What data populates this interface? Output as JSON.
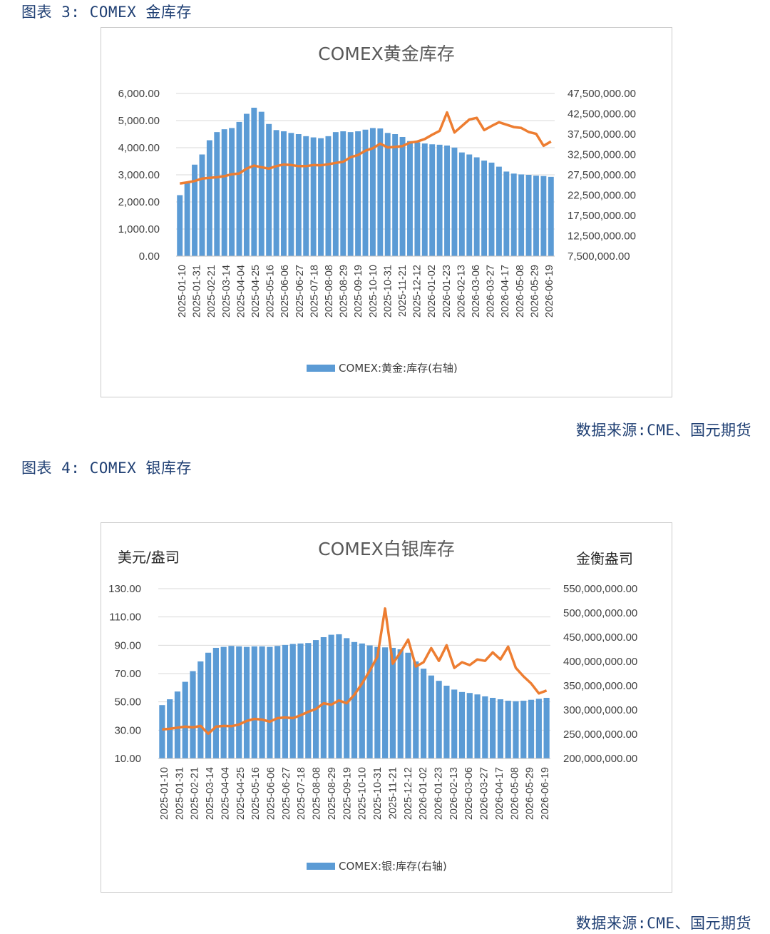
{
  "captions": {
    "fig3": "图表 3: COMEX 金库存",
    "fig4": "图表 4: COMEX 银库存",
    "source3": "数据来源:CME、国元期货",
    "source4": "数据来源:CME、国元期货"
  },
  "colors": {
    "bar": "#5b9bd5",
    "line": "#ed7d31",
    "grid": "#d9d9d9"
  },
  "chart_data": [
    {
      "type": "bar+line",
      "title": "COMEX黄金库存",
      "left_unit": "",
      "right_unit": "",
      "left_axis": {
        "min": 0,
        "max": 6000,
        "ticks": [
          "6,000.00",
          "5,000.00",
          "4,000.00",
          "3,000.00",
          "2,000.00",
          "1,000.00",
          "0.00"
        ]
      },
      "right_axis": {
        "min": 7500000,
        "max": 47500000,
        "ticks": [
          "47,500,000.00",
          "42,500,000.00",
          "37,500,000.00",
          "32,500,000.00",
          "27,500,000.00",
          "22,500,000.00",
          "17,500,000.00",
          "12,500,000.00",
          "7,500,000.00"
        ]
      },
      "x_tick_labels": [
        "2025-01-10",
        "2025-01-31",
        "2025-02-21",
        "2025-03-14",
        "2025-04-04",
        "2025-04-25",
        "2025-05-16",
        "2025-06-06",
        "2025-06-27",
        "2025-07-18",
        "2025-08-08",
        "2025-08-29",
        "2025-09-19",
        "2025-10-10",
        "2025-10-31",
        "2025-11-21",
        "2025-12-12",
        "2026-01-02",
        "2026-01-23",
        "2026-02-13",
        "2026-03-06",
        "2026-03-27",
        "2026-04-17",
        "2026-05-08",
        "2026-05-29",
        "2026-06-19"
      ],
      "series": [
        {
          "name": "COMEX:黄金:库存(右轴)",
          "kind": "bar",
          "axis": "right",
          "values": [
            22500000,
            25500000,
            30000000,
            32500000,
            36000000,
            38000000,
            38700000,
            39000000,
            40500000,
            42500000,
            44000000,
            43000000,
            40000000,
            38500000,
            38200000,
            37800000,
            37500000,
            37000000,
            36700000,
            36500000,
            37000000,
            38000000,
            38200000,
            38000000,
            38200000,
            38600000,
            39000000,
            38900000,
            37800000,
            37500000,
            36800000,
            35800000,
            35500000,
            35200000,
            35000000,
            34900000,
            34700000,
            34200000,
            33000000,
            32500000,
            31800000,
            31000000,
            30500000,
            29500000,
            28300000,
            27800000,
            27600000,
            27500000,
            27300000,
            27200000,
            27000000
          ]
        },
        {
          "name": "",
          "kind": "line",
          "axis": "left",
          "values": [
            2680,
            2720,
            2770,
            2860,
            2890,
            2910,
            2950,
            3020,
            3050,
            3230,
            3340,
            3280,
            3230,
            3320,
            3380,
            3360,
            3320,
            3320,
            3360,
            3350,
            3390,
            3440,
            3480,
            3650,
            3730,
            3890,
            3980,
            4150,
            4010,
            4030,
            4060,
            4190,
            4230,
            4320,
            4480,
            4620,
            5300,
            4560,
            4800,
            5040,
            5100,
            4650,
            4800,
            4940,
            4850,
            4760,
            4730,
            4580,
            4510,
            4070,
            4230
          ]
        }
      ]
    },
    {
      "type": "bar+line",
      "title": "COMEX白银库存",
      "left_unit": "美元/盎司",
      "right_unit": "金衡盎司",
      "left_axis": {
        "min": 10,
        "max": 130,
        "ticks": [
          "130.00",
          "110.00",
          "90.00",
          "70.00",
          "50.00",
          "30.00",
          "10.00"
        ]
      },
      "right_axis": {
        "min": 200000000,
        "max": 550000000,
        "ticks": [
          "550,000,000.00",
          "500,000,000.00",
          "450,000,000.00",
          "400,000,000.00",
          "350,000,000.00",
          "300,000,000.00",
          "250,000,000.00",
          "200,000,000.00"
        ]
      },
      "x_tick_labels": [
        "2025-01-10",
        "2025-01-31",
        "2025-02-21",
        "2025-03-14",
        "2025-04-04",
        "2025-04-25",
        "2025-05-16",
        "2025-06-06",
        "2025-06-27",
        "2025-07-18",
        "2025-08-08",
        "2025-08-29",
        "2025-09-19",
        "2025-10-10",
        "2025-10-31",
        "2025-11-21",
        "2025-12-12",
        "2026-01-02",
        "2026-01-23",
        "2026-02-13",
        "2026-03-06",
        "2026-03-27",
        "2026-04-17",
        "2026-05-08",
        "2026-05-29",
        "2026-06-19"
      ],
      "series": [
        {
          "name": "COMEX:银:库存(右轴)",
          "kind": "bar",
          "axis": "right",
          "values": [
            310000000,
            322000000,
            338000000,
            358000000,
            380000000,
            400000000,
            418000000,
            428000000,
            430000000,
            432000000,
            431000000,
            430000000,
            431000000,
            431000000,
            430000000,
            432000000,
            434000000,
            436000000,
            437000000,
            438000000,
            444000000,
            450000000,
            455000000,
            456000000,
            448000000,
            440000000,
            437000000,
            433000000,
            430000000,
            429000000,
            428000000,
            425000000,
            418000000,
            400000000,
            385000000,
            371000000,
            360000000,
            350000000,
            342000000,
            337000000,
            335000000,
            332000000,
            328000000,
            325000000,
            322000000,
            319000000,
            318000000,
            319000000,
            321000000,
            323000000,
            325000000
          ]
        },
        {
          "name": "",
          "kind": "line",
          "axis": "left",
          "values": [
            30.5,
            31.0,
            31.8,
            32.5,
            32.0,
            33.0,
            27.5,
            32.5,
            33.0,
            32.8,
            34.0,
            36.5,
            38.0,
            37.5,
            36.0,
            38.5,
            39.0,
            38.5,
            40.5,
            43.0,
            45.0,
            49.0,
            48.0,
            51.0,
            49.0,
            55.0,
            63.0,
            72.0,
            82.0,
            116.0,
            77.0,
            85.0,
            94.0,
            75.0,
            78.0,
            88.0,
            79.0,
            90.0,
            74.0,
            78.0,
            76.0,
            80.0,
            79.0,
            85.0,
            80.0,
            89.0,
            74.0,
            68.0,
            63.0,
            56.0,
            58.0
          ]
        }
      ]
    }
  ]
}
